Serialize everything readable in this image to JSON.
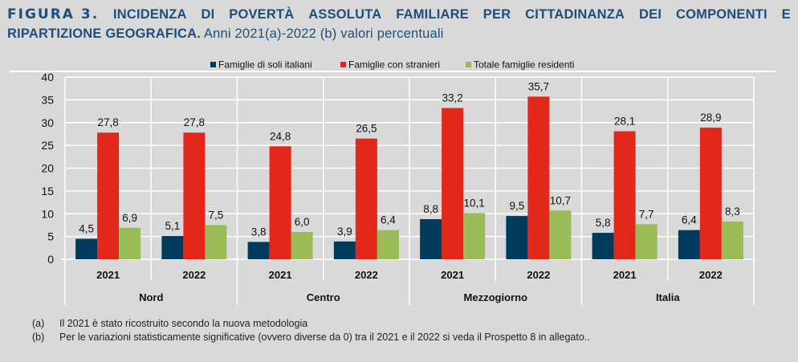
{
  "title": {
    "figure_label": "FIGURA 3.",
    "line1_words": [
      "INCIDENZA",
      "DI",
      "POVERTÀ",
      "ASSOLUTA",
      "FAMILIARE",
      "PER",
      "CITTADINANZA",
      "DEI",
      "COMPONENTI",
      "E"
    ],
    "line2_bold": "RIPARTIZIONE GEOGRAFICA.",
    "line2_normal": " Anni 2021(a)-2022 (b) valori percentuali"
  },
  "chart_data": {
    "type": "bar",
    "title": "Incidenza di povertà assoluta familiare per cittadinanza dei componenti e ripartizione geografica. Anni 2021(a)-2022 (b) valori percentuali",
    "xlabel": "",
    "ylabel": "",
    "ylim": [
      0,
      40
    ],
    "yticks": [
      0,
      5,
      10,
      15,
      20,
      25,
      30,
      35,
      40
    ],
    "grid": true,
    "legend_position": "top",
    "groups": [
      "Nord",
      "Centro",
      "Mezzogiorno",
      "Italia"
    ],
    "categories": [
      "2021",
      "2022",
      "2021",
      "2022",
      "2021",
      "2022",
      "2021",
      "2022"
    ],
    "category_groups": [
      "Nord",
      "Nord",
      "Centro",
      "Centro",
      "Mezzogiorno",
      "Mezzogiorno",
      "Italia",
      "Italia"
    ],
    "series": [
      {
        "name": "Famiglie di soli italiani",
        "color": "#003a5c",
        "values": [
          4.5,
          5.1,
          3.8,
          3.9,
          8.8,
          9.5,
          5.8,
          6.4
        ],
        "labels": [
          "4,5",
          "5,1",
          "3,8",
          "3,9",
          "8,8",
          "9,5",
          "5,8",
          "6,4"
        ]
      },
      {
        "name": "Famiglie con stranieri",
        "color": "#e2281b",
        "values": [
          27.8,
          27.8,
          24.8,
          26.5,
          33.2,
          35.7,
          28.1,
          28.9
        ],
        "labels": [
          "27,8",
          "27,8",
          "24,8",
          "26,5",
          "33,2",
          "35,7",
          "28,1",
          "28,9"
        ]
      },
      {
        "name": "Totale famiglie residenti",
        "color": "#9bbb59",
        "values": [
          6.9,
          7.5,
          6.0,
          6.4,
          10.1,
          10.7,
          7.7,
          8.3
        ],
        "labels": [
          "6,9",
          "7,5",
          "6,0",
          "6,4",
          "10,1",
          "10,7",
          "7,7",
          "8,3"
        ]
      }
    ]
  },
  "notes": [
    {
      "key": "(a)",
      "text": "Il 2021 è stato ricostruito secondo la nuova metodologia"
    },
    {
      "key": "(b)",
      "text": "Per le variazioni statisticamente significative (ovvero diverse da 0) tra il 2021 e il 2022 si veda il Prospetto 8 in allegato.."
    }
  ]
}
